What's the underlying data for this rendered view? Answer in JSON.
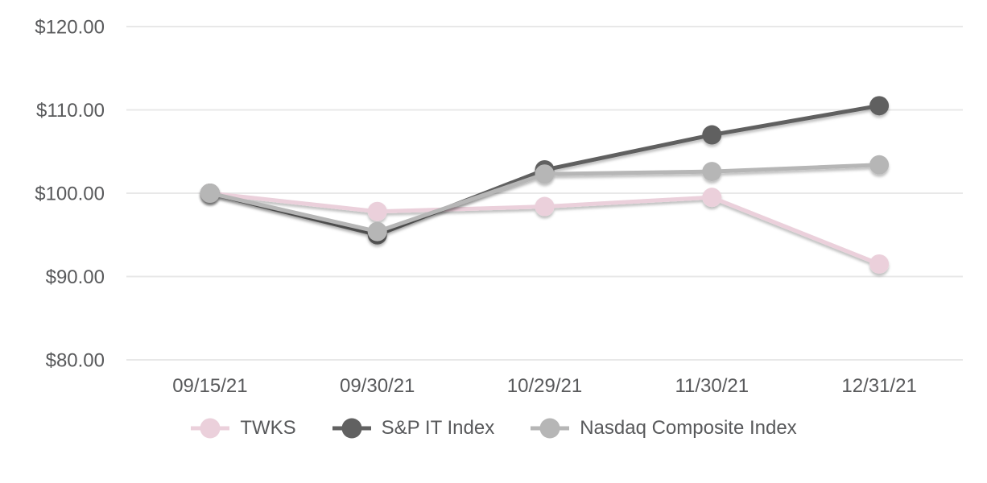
{
  "chart_data": {
    "type": "line",
    "title": "",
    "xlabel": "",
    "ylabel": "",
    "categories": [
      "09/15/21",
      "09/30/21",
      "10/29/21",
      "11/30/21",
      "12/31/21"
    ],
    "series": [
      {
        "name": "TWKS",
        "color": "#ebd0db",
        "values": [
          100.0,
          97.8,
          98.4,
          99.5,
          91.5
        ]
      },
      {
        "name": "S&P IT Index",
        "color": "#616161",
        "values": [
          100.0,
          95.0,
          102.8,
          107.0,
          110.5
        ]
      },
      {
        "name": "Nasdaq Composite Index",
        "color": "#b6b6b6",
        "values": [
          100.0,
          95.4,
          102.3,
          102.6,
          103.4
        ]
      }
    ],
    "y_ticks": [
      {
        "value": 80,
        "label": "$80.00"
      },
      {
        "value": 90,
        "label": "$90.00"
      },
      {
        "value": 100,
        "label": "$100.00"
      },
      {
        "value": 110,
        "label": "$110.00"
      },
      {
        "value": 120,
        "label": "$120.00"
      }
    ],
    "ylim": [
      80,
      120
    ],
    "grid": "horizontal",
    "gridline_color": "#e8e8e8",
    "text_color": "#58595b",
    "legend_position": "bottom"
  }
}
